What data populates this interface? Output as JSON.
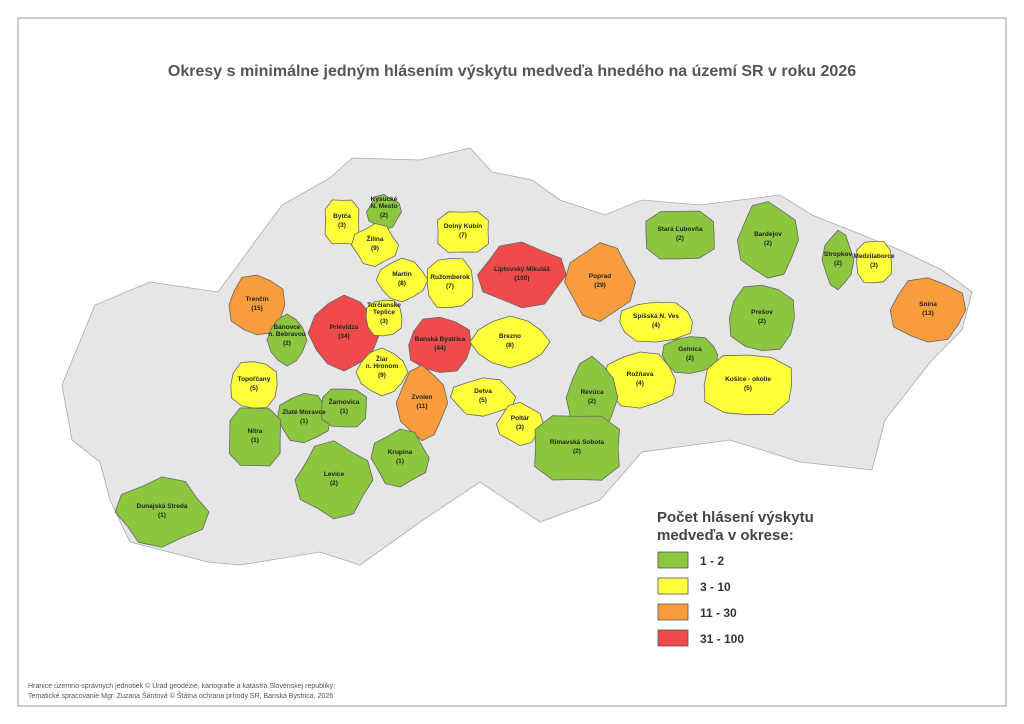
{
  "title": "Okresy s minimálne jedným hlásením výskytu medveďa hnedého na území SR v roku 2026",
  "districts": [
    {
      "name": [
        "Bytča"
      ],
      "value": 3,
      "label": "(3)",
      "color": "#ffff3c"
    },
    {
      "name": [
        "Kysucké",
        "N. Mesto"
      ],
      "value": 2,
      "label": "(2)",
      "color": "#8cc63f"
    },
    {
      "name": [
        "Žilina"
      ],
      "value": 9,
      "label": "(9)",
      "color": "#ffff3c"
    },
    {
      "name": [
        "Dolný Kubín"
      ],
      "value": 7,
      "label": "(7)",
      "color": "#ffff3c"
    },
    {
      "name": [
        "Liptovský Mikuláš"
      ],
      "value": 100,
      "label": "(100)",
      "color": "#f04b4b"
    },
    {
      "name": [
        "Poprad"
      ],
      "value": 29,
      "label": "(29)",
      "color": "#f89c3d"
    },
    {
      "name": [
        "Stará Ľubovňa"
      ],
      "value": 2,
      "label": "(2)",
      "color": "#8cc63f"
    },
    {
      "name": [
        "Bardejov"
      ],
      "value": 2,
      "label": "(2)",
      "color": "#8cc63f"
    },
    {
      "name": [
        "Stropkov"
      ],
      "value": 2,
      "label": "(2)",
      "color": "#8cc63f"
    },
    {
      "name": [
        "Medzilaborce"
      ],
      "value": 3,
      "label": "(3)",
      "color": "#ffff3c"
    },
    {
      "name": [
        "Snina"
      ],
      "value": 13,
      "label": "(13)",
      "color": "#f89c3d"
    },
    {
      "name": [
        "Martin"
      ],
      "value": 8,
      "label": "(8)",
      "color": "#ffff3c"
    },
    {
      "name": [
        "Ružomberok"
      ],
      "value": 7,
      "label": "(7)",
      "color": "#ffff3c"
    },
    {
      "name": [
        "Trenčín"
      ],
      "value": 15,
      "label": "(15)",
      "color": "#f89c3d"
    },
    {
      "name": [
        "Prievidza"
      ],
      "value": 34,
      "label": "(34)",
      "color": "#f04b4b"
    },
    {
      "name": [
        "Turčianske",
        "Teplice"
      ],
      "value": 3,
      "label": "(3)",
      "color": "#ffff3c"
    },
    {
      "name": [
        "Banská Bystrica"
      ],
      "value": 44,
      "label": "(44)",
      "color": "#f04b4b"
    },
    {
      "name": [
        "Brezno"
      ],
      "value": 8,
      "label": "(8)",
      "color": "#ffff3c"
    },
    {
      "name": [
        "Spišská N. Ves"
      ],
      "value": 4,
      "label": "(4)",
      "color": "#ffff3c"
    },
    {
      "name": [
        "Prešov"
      ],
      "value": 2,
      "label": "(2)",
      "color": "#8cc63f"
    },
    {
      "name": [
        "Bánovce",
        "n. Bebravou"
      ],
      "value": 2,
      "label": "(2)",
      "color": "#8cc63f"
    },
    {
      "name": [
        "Gelnica"
      ],
      "value": 2,
      "label": "(2)",
      "color": "#8cc63f"
    },
    {
      "name": [
        "Topoľčany"
      ],
      "value": 5,
      "label": "(5)",
      "color": "#ffff3c"
    },
    {
      "name": [
        "Žiar",
        "n. Hronom"
      ],
      "value": 9,
      "label": "(9)",
      "color": "#ffff3c"
    },
    {
      "name": [
        "Rožňava"
      ],
      "value": 4,
      "label": "(4)",
      "color": "#ffff3c"
    },
    {
      "name": [
        "Košice - okolie"
      ],
      "value": 5,
      "label": "(5)",
      "color": "#ffff3c"
    },
    {
      "name": [
        "Revúca"
      ],
      "value": 2,
      "label": "(2)",
      "color": "#8cc63f"
    },
    {
      "name": [
        "Zlaté Moravce"
      ],
      "value": 1,
      "label": "(1)",
      "color": "#8cc63f"
    },
    {
      "name": [
        "Žarnovica"
      ],
      "value": 1,
      "label": "(1)",
      "color": "#8cc63f"
    },
    {
      "name": [
        "Zvolen"
      ],
      "value": 11,
      "label": "(11)",
      "color": "#f89c3d"
    },
    {
      "name": [
        "Detva"
      ],
      "value": 5,
      "label": "(5)",
      "color": "#ffff3c"
    },
    {
      "name": [
        "Nitra"
      ],
      "value": 1,
      "label": "(1)",
      "color": "#8cc63f"
    },
    {
      "name": [
        "Poltár"
      ],
      "value": 3,
      "label": "(3)",
      "color": "#ffff3c"
    },
    {
      "name": [
        "Krupina"
      ],
      "value": 1,
      "label": "(1)",
      "color": "#8cc63f"
    },
    {
      "name": [
        "Rimavská Sobota"
      ],
      "value": 2,
      "label": "(2)",
      "color": "#8cc63f"
    },
    {
      "name": [
        "Levice"
      ],
      "value": 2,
      "label": "(2)",
      "color": "#8cc63f"
    },
    {
      "name": [
        "Dunajská Streda"
      ],
      "value": 1,
      "label": "(1)",
      "color": "#8cc63f"
    }
  ],
  "legend": {
    "title": [
      "Počet hlásení výskytu",
      "medveďa v okrese:"
    ],
    "items": [
      {
        "label": "1 - 2",
        "color": "#8cc63f"
      },
      {
        "label": "3 - 10",
        "color": "#ffff3c"
      },
      {
        "label": "11 - 30",
        "color": "#f89c3d"
      },
      {
        "label": "31 - 100",
        "color": "#f04b4b"
      }
    ]
  },
  "footer": [
    "Hranice územno-správnych jednotiek © Úrad geodézie, kartografie a katastra Slovenskej republiky;",
    "Tematické spracovanie Mgr. Zuzana Šántová © Štátna ochrana prírody SR, Banská Bystrica, 2026"
  ]
}
